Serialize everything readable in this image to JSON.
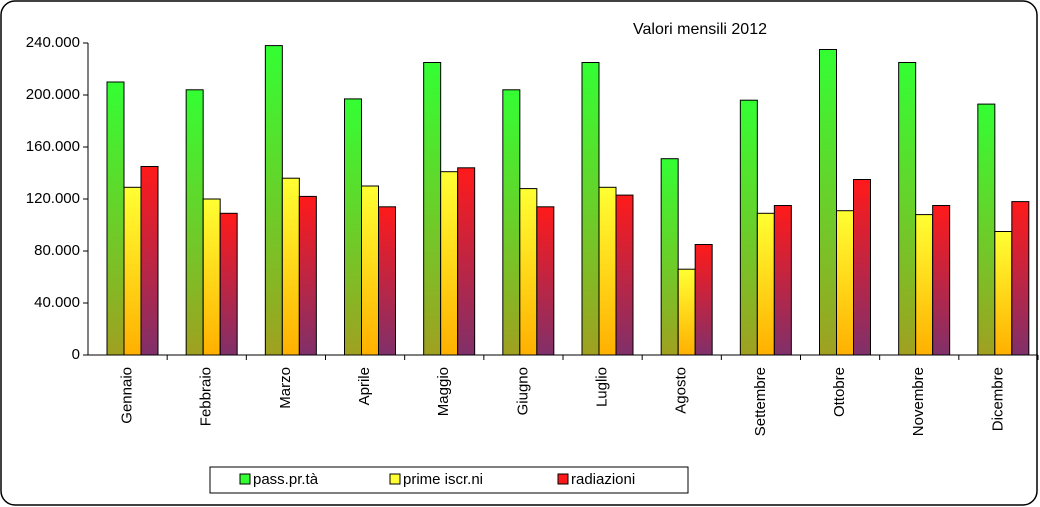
{
  "chart_data": {
    "type": "bar",
    "title": "Valori mensili 2012",
    "categories": [
      "Gennaio",
      "Febbraio",
      "Marzo",
      "Aprile",
      "Maggio",
      "Giugno",
      "Luglio",
      "Agosto",
      "Settembre",
      "Ottobre",
      "Novembre",
      "Dicembre"
    ],
    "series": [
      {
        "name": "pass.pr.tà",
        "color": "#33ff33",
        "color_bottom": "#a0a020",
        "values": [
          210000,
          204000,
          238000,
          197000,
          225000,
          204000,
          225000,
          151000,
          196000,
          235000,
          225000,
          193000
        ]
      },
      {
        "name": "prime iscr.ni",
        "color": "#ffff33",
        "color_bottom": "#ffb000",
        "values": [
          129000,
          120000,
          136000,
          130000,
          141000,
          128000,
          129000,
          66000,
          109000,
          111000,
          108000,
          95000
        ]
      },
      {
        "name": "radiazioni",
        "color": "#ff1a1a",
        "color_bottom": "#80306a",
        "values": [
          145000,
          109000,
          122000,
          114000,
          144000,
          114000,
          123000,
          85000,
          115000,
          135000,
          115000,
          118000
        ]
      }
    ],
    "ylim": [
      0,
      240000
    ],
    "yticks": [
      0,
      {
        "value": 40000,
        "label": "40.000"
      },
      {
        "value": 80000,
        "label": "80.000"
      },
      {
        "value": 120000,
        "label": "120.000"
      },
      {
        "value": 160000,
        "label": "160.000"
      },
      {
        "value": 200000,
        "label": "200.000"
      },
      {
        "value": 240000,
        "label": "240.000"
      }
    ],
    "grid": false,
    "legend": "bottom"
  }
}
